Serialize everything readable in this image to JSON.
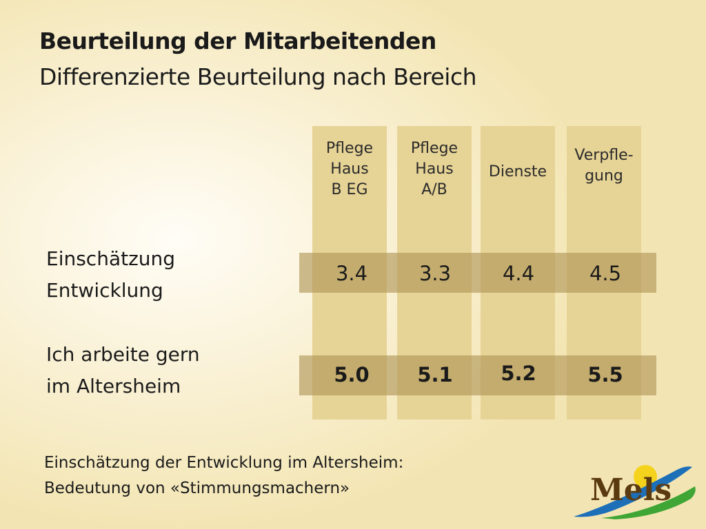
{
  "title": {
    "main": "Beurteilung der Mitarbeitenden",
    "sub": "Differenzierte Beurteilung nach Bereich"
  },
  "columns": [
    {
      "line1": "Pflege",
      "line2": "Haus",
      "line3": "B EG"
    },
    {
      "line1": "Pflege",
      "line2": "Haus",
      "line3": "A/B"
    },
    {
      "line1": "Dienste"
    },
    {
      "line1": "Verpfle-",
      "line2": "gung"
    }
  ],
  "rows": [
    {
      "label_line1": "Einschätzung",
      "label_line2": "Entwicklung",
      "values": [
        "3.4",
        "3.3",
        "4.4",
        "4.5"
      ]
    },
    {
      "label_line1": "Ich arbeite gern",
      "label_line2": "im Altersheim",
      "values": [
        "5.0",
        "5.1",
        "5.2",
        "5.5"
      ]
    }
  ],
  "footer": {
    "line1": "Einschätzung der Entwicklung im Altersheim:",
    "line2": "Bedeutung von «Stimmungsmachern»"
  },
  "logo": {
    "text": "Mels",
    "icon": "mels-logo"
  },
  "colors": {
    "column": "#e6d396",
    "band": "#af9455",
    "logo_blue": "#1d6fb8",
    "logo_green": "#3fa535",
    "logo_sun": "#f5d31c"
  }
}
